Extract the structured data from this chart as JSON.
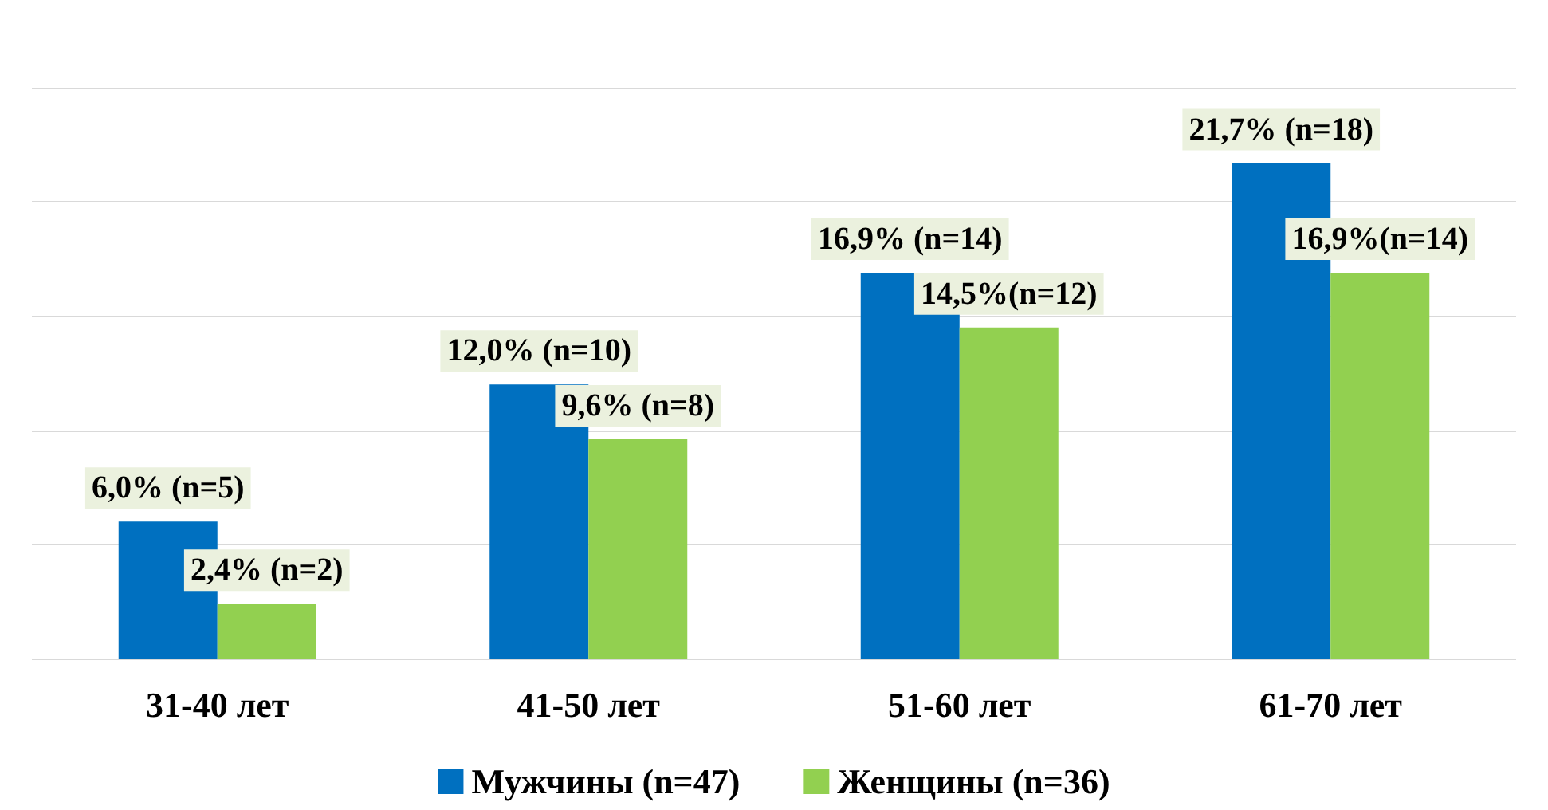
{
  "chart_data": {
    "type": "bar",
    "categories": [
      "31-40 лет",
      "41-50 лет",
      "51-60 лет",
      "61-70 лет"
    ],
    "series": [
      {
        "name": "Мужчины (n=47)",
        "color": "#0070c0",
        "values": [
          6.0,
          12.0,
          16.9,
          21.7
        ],
        "value_labels": [
          "6,0% (n=5)",
          "12,0% (n=10)",
          "16,9% (n=14)",
          "21,7% (n=18)"
        ]
      },
      {
        "name": "Женщины (n=36)",
        "color": "#92d050",
        "values": [
          2.4,
          9.6,
          14.5,
          16.9
        ],
        "value_labels": [
          "2,4% (n=2)",
          "9,6% (n=8)",
          "14,5%(n=12)",
          "16,9%(n=14)"
        ]
      }
    ],
    "ylim": [
      0,
      25
    ],
    "yticks": [
      {
        "value": 0,
        "label": null
      },
      {
        "value": 5,
        "label": null
      },
      {
        "value": 10,
        "label": null
      },
      {
        "value": 15,
        "label": null
      },
      {
        "value": 20,
        "label": null
      },
      {
        "value": 25,
        "label": null
      }
    ],
    "tick_labels": "x",
    "grid": "y",
    "legend": "bottom"
  }
}
